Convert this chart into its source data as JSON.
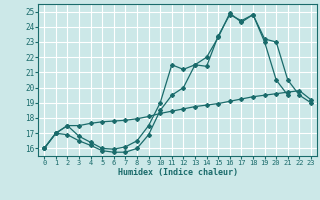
{
  "xlabel": "Humidex (Indice chaleur)",
  "xlim": [
    -0.5,
    23.5
  ],
  "ylim": [
    15.5,
    25.5
  ],
  "xticks": [
    0,
    1,
    2,
    3,
    4,
    5,
    6,
    7,
    8,
    9,
    10,
    11,
    12,
    13,
    14,
    15,
    16,
    17,
    18,
    19,
    20,
    21,
    22,
    23
  ],
  "yticks": [
    16,
    17,
    18,
    19,
    20,
    21,
    22,
    23,
    24,
    25
  ],
  "bg_color": "#cce8e8",
  "grid_color": "#ffffff",
  "line_color": "#1a6b6b",
  "line1_x": [
    0,
    1,
    2,
    3,
    4,
    5,
    6,
    7,
    8,
    9,
    10,
    11,
    12,
    13,
    14,
    15,
    16,
    17,
    18,
    19,
    20,
    21
  ],
  "line1_y": [
    16,
    17,
    16.9,
    16.5,
    16.2,
    15.85,
    15.75,
    15.75,
    16.0,
    16.9,
    18.5,
    19.5,
    20.0,
    21.5,
    21.4,
    23.4,
    24.8,
    24.4,
    24.8,
    23.0,
    20.5,
    19.5
  ],
  "line2_x": [
    0,
    1,
    2,
    3,
    4,
    5,
    6,
    7,
    8,
    9,
    10,
    11,
    12,
    13,
    14,
    15,
    16,
    17,
    18,
    19,
    20,
    21,
    22,
    23
  ],
  "line2_y": [
    16,
    17,
    17.5,
    16.8,
    16.4,
    16.0,
    15.95,
    16.1,
    16.5,
    17.5,
    19.0,
    21.5,
    21.2,
    21.5,
    22.0,
    23.3,
    24.9,
    24.3,
    24.8,
    23.2,
    23.0,
    20.5,
    19.5,
    19.0
  ],
  "line3_x": [
    0,
    1,
    2,
    3,
    4,
    5,
    6,
    7,
    8,
    9,
    10,
    11,
    12,
    13,
    14,
    15,
    16,
    17,
    18,
    19,
    20,
    21,
    22,
    23
  ],
  "line3_y": [
    16,
    17,
    17.5,
    17.5,
    17.65,
    17.75,
    17.8,
    17.85,
    17.95,
    18.1,
    18.3,
    18.45,
    18.6,
    18.75,
    18.85,
    18.95,
    19.1,
    19.25,
    19.4,
    19.5,
    19.6,
    19.7,
    19.8,
    19.2
  ]
}
